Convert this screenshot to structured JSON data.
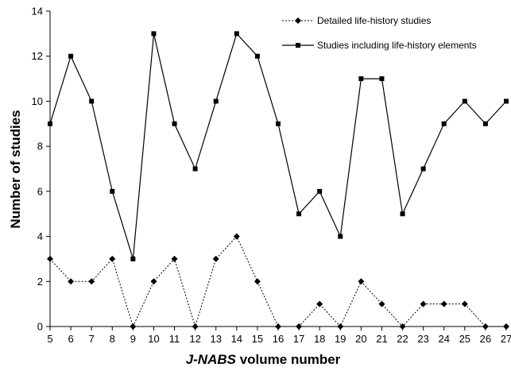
{
  "chart_data": {
    "type": "line",
    "xlabel_prefix": "J-NABS",
    "xlabel_suffix": " volume number",
    "ylabel": "Number of studies",
    "xlim": [
      5,
      27
    ],
    "ylim": [
      0,
      14
    ],
    "x_ticks": [
      5,
      6,
      7,
      8,
      9,
      10,
      11,
      12,
      13,
      14,
      15,
      16,
      17,
      18,
      19,
      20,
      21,
      22,
      23,
      24,
      25,
      26,
      27
    ],
    "y_ticks": [
      0,
      2,
      4,
      6,
      8,
      10,
      12,
      14
    ],
    "grid": false,
    "legend_position": "top-right",
    "x": [
      5,
      6,
      7,
      8,
      9,
      10,
      11,
      12,
      13,
      14,
      15,
      16,
      17,
      18,
      19,
      20,
      21,
      22,
      23,
      24,
      25,
      26,
      27
    ],
    "series": [
      {
        "name": "Detailed life-history studies",
        "style": "dotted",
        "marker": "diamond",
        "color": "#000000",
        "values": [
          3,
          2,
          2,
          3,
          0,
          2,
          3,
          0,
          3,
          4,
          2,
          0,
          0,
          1,
          0,
          2,
          1,
          0,
          1,
          1,
          1,
          0,
          0
        ]
      },
      {
        "name": "Studies including life-history elements",
        "style": "solid",
        "marker": "square",
        "color": "#000000",
        "values": [
          9,
          12,
          10,
          6,
          3,
          13,
          9,
          7,
          10,
          13,
          12,
          9,
          5,
          6,
          4,
          11,
          11,
          5,
          7,
          9,
          10,
          9,
          10
        ]
      }
    ]
  }
}
